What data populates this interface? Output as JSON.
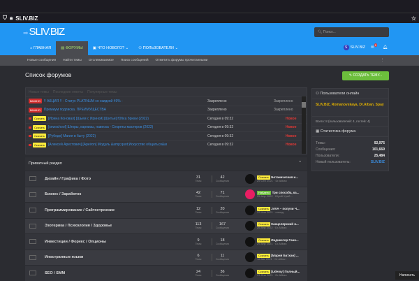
{
  "browser": {
    "url": "SLIV.BIZ"
  },
  "header": {
    "logo": "SLIV.BIZ",
    "search_placeholder": "Поиск...",
    "nav": [
      "ГЛАВНАЯ",
      "ФОРУМЫ",
      "ЧТО НОВОГО?",
      "ПОЛЬЗОВАТЕЛИ"
    ],
    "user": "SLIV.BIZ",
    "user_initial": "S",
    "notif_count": "1"
  },
  "subnav": [
    "Новые сообщения",
    "Найти темы",
    "Отслеживаемое",
    "Поиск сообщений",
    "Отметить форумы прочитанными"
  ],
  "page_title": "Список форумов",
  "create_button": "СОЗДАТЬ ТЕМУ...",
  "latest": {
    "tabs": [
      "Новые темы",
      "Последние ответы",
      "Популярные темы"
    ],
    "rows": [
      {
        "tag": "ВАЖНО",
        "tag_type": "vaj",
        "title": "!! АКЦИЯ !! - Статус PLATINUM со скидкой 49% -",
        "date": "Закреплено",
        "right": "Закреплено"
      },
      {
        "tag": "ВАЖНО",
        "tag_type": "vaj",
        "title": "Премиум подписка. ПРЕИМУЩЕСТВА",
        "date": "Закреплено",
        "right": "Закреплено"
      },
      {
        "tag": "Скачать",
        "tag_type": "sk",
        "title": "[Ирина Коновал] [Шьем с Ириной] [Шитье] Юбка брюки (2022)",
        "date": "Сегодня в 09:32",
        "right": "Новое"
      },
      {
        "tag": "Скачать",
        "tag_type": "sk",
        "title": "[sewschool] Шторы, карнизы, навеска - Секреты мастеров (2022)",
        "date": "Сегодня в 09:32",
        "right": "Новое"
      },
      {
        "tag": "Скачать",
        "tag_type": "sk",
        "title": "[Рубедо] Магия в быту (2022)",
        "date": "Сегодня в 09:32",
        "right": "Новое"
      },
      {
        "tag": "Скачать",
        "tag_type": "sk",
        "title": "[Алексей Арестович] [Apeiron] Модуль &amp;quot;Искусство общаться&amp;...",
        "date": "Сегодня в 09:32",
        "right": "Новое"
      }
    ]
  },
  "online": {
    "title": "Пользователи онлайн",
    "users": "SLIV.BIZ, Romanovskaya, Dr.Alban, Spay",
    "total": "Всего: 8 (пользователей: 4, гостей: 4)"
  },
  "stats": {
    "title": "Статистика форума",
    "rows": [
      {
        "k": "Темы:",
        "v": "92,975"
      },
      {
        "k": "Сообщения:",
        "v": "101,669"
      },
      {
        "k": "Пользователи:",
        "v": "25,484"
      },
      {
        "k": "Новый пользователь:",
        "v": "SLIV.BIZ"
      }
    ]
  },
  "section": {
    "title": "Приватный раздел",
    "topics_label": "Темы",
    "posts_label": "Сообщения",
    "forums": [
      {
        "name": "Дизайн / Графика / Фото",
        "topics": "31",
        "posts": "42",
        "tag": "Скачать",
        "tag_type": "sk",
        "last": "Ботаническая и...",
        "meta": "29 Сен 2021 · Dr.Allban"
      },
      {
        "name": "Бизнес / Заработок",
        "topics": "42",
        "posts": "71",
        "tag": "Найдено",
        "tag_type": "nal",
        "last": "Три способа, ка...",
        "meta": "25 Апр 2022 · Юрий Храб..."
      },
      {
        "name": "Программирование / Сайтостроение",
        "topics": "12",
        "posts": "20",
        "tag": "Скачать",
        "tag_type": "sk",
        "last": "JAVA – получи Ч...",
        "meta": "22 Ноя 2021 · олмод"
      },
      {
        "name": "Эзотерика / Психология / Здоровье",
        "topics": "113",
        "posts": "167",
        "tag": "Скачать",
        "tag_type": "sk",
        "last": "Канцелярский н...",
        "meta": "26 Апр 2022 · Dr.Allban"
      },
      {
        "name": "Инвестиции / Форекс / Опционы",
        "topics": "9",
        "posts": "18",
        "tag": "Скачать",
        "tag_type": "sk",
        "last": "Индикатор Ганн...",
        "meta": "29 Апр 2021 · Dr.Allban"
      },
      {
        "name": "Иностранные языки",
        "topics": "6",
        "posts": "11",
        "tag": "Скачать",
        "tag_type": "sk",
        "last": "[Мария Батхан] ...",
        "meta": "16 Авг 2021 · Dr.Allban"
      },
      {
        "name": "SEO / SMM",
        "topics": "24",
        "posts": "36",
        "tag": "Скачать",
        "tag_type": "sk",
        "last": "[Udemy] Полный...",
        "meta": "23 Янв 2021 · Dr.Allban"
      }
    ]
  },
  "chat_button": "Написать"
}
